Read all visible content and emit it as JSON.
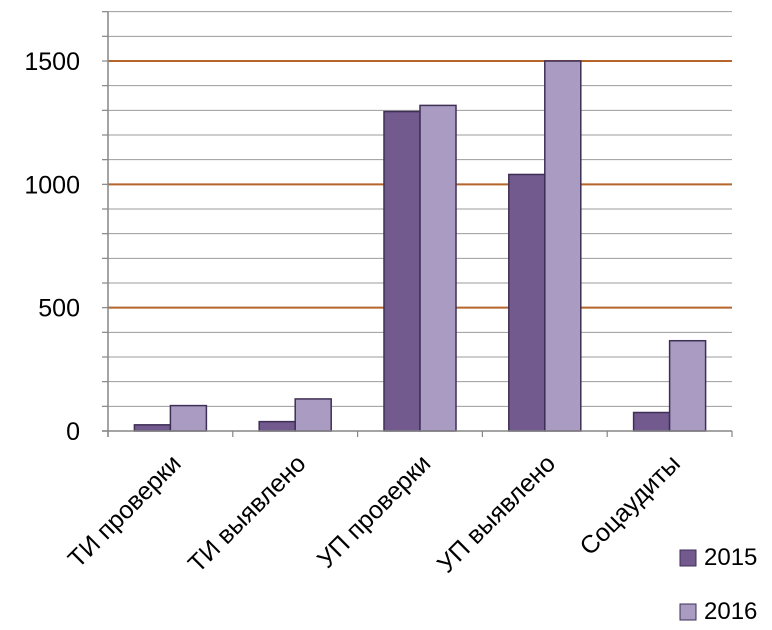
{
  "chart_data": {
    "type": "bar",
    "categories": [
      "ТИ проверки",
      "ТИ выявлено",
      "УП проверки",
      "УП выявлено",
      "Соцаудиты"
    ],
    "series": [
      {
        "name": "2015",
        "values": [
          25,
          38,
          1295,
          1040,
          75
        ],
        "color": "#725a8f"
      },
      {
        "name": "2016",
        "values": [
          103,
          130,
          1320,
          1500,
          366
        ],
        "color": "#a99bc1"
      }
    ],
    "y_ticks": [
      "0",
      "500",
      "1000",
      "1500"
    ],
    "ylim": [
      0,
      1700
    ],
    "major_gridline_color": "#b5652a",
    "minor_gridline_color": "#9b9b9b",
    "legend_position": "bottom-right",
    "title": "",
    "xlabel": "",
    "ylabel": ""
  }
}
